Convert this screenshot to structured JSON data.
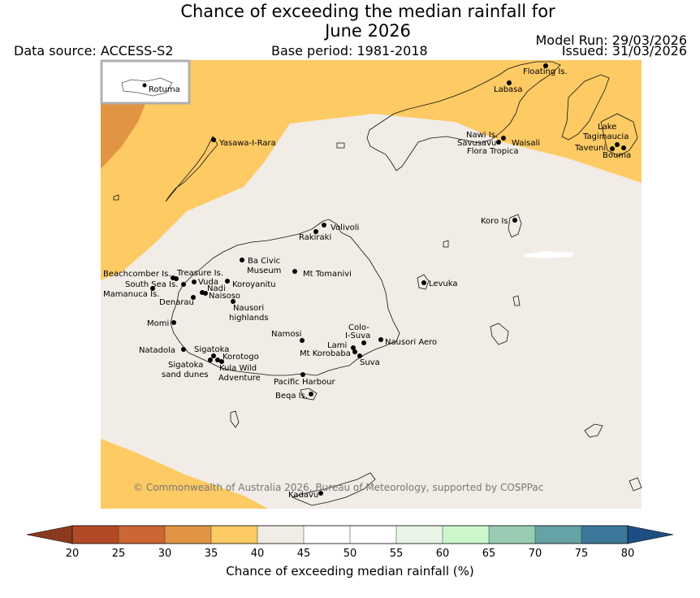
{
  "header": {
    "title_line1": "Chance of exceeding the median rainfall for",
    "title_line2": "June 2026",
    "data_source": "Data source: ACCESS-S2",
    "base_period": "Base period: 1981-2018",
    "model_run": "Model Run: 29/03/2026",
    "issued": "Issued: 31/03/2026"
  },
  "inset": {
    "label": "Rotuma"
  },
  "copyright": "© Commonwealth of Australia 2026, Bureau of Meteorology, supported by COSPPac",
  "places": [
    {
      "name": "Floating Is."
    },
    {
      "name": "Labasa"
    },
    {
      "name": "Yasawa-I-Rara"
    },
    {
      "name": "Nawi Is."
    },
    {
      "name": "Savusavu"
    },
    {
      "name": "Waisali"
    },
    {
      "name": "Flora Tropica"
    },
    {
      "name": "Lake"
    },
    {
      "name": "Tagimaucia"
    },
    {
      "name": "Taveuni"
    },
    {
      "name": "Bouma"
    },
    {
      "name": "Koro Is."
    },
    {
      "name": "Volivoli"
    },
    {
      "name": "Rakiraki"
    },
    {
      "name": "Ba Civic"
    },
    {
      "name": "Museum"
    },
    {
      "name": "Mt Tomanivi"
    },
    {
      "name": "Beachcomber Is."
    },
    {
      "name": "Treasure Is."
    },
    {
      "name": "South Sea Is."
    },
    {
      "name": "Vuda"
    },
    {
      "name": "Nadi"
    },
    {
      "name": "Koroyanitu"
    },
    {
      "name": "Mamanuca Is."
    },
    {
      "name": "Naisoso"
    },
    {
      "name": "Denarau"
    },
    {
      "name": "Nausori"
    },
    {
      "name": "highlands"
    },
    {
      "name": "Levuka"
    },
    {
      "name": "Momi"
    },
    {
      "name": "Namosi"
    },
    {
      "name": "Colo-"
    },
    {
      "name": "I-Suva"
    },
    {
      "name": "Lami"
    },
    {
      "name": "Nausori Aero"
    },
    {
      "name": "Natadola"
    },
    {
      "name": "Sigatoka"
    },
    {
      "name": "Mt Korobaba"
    },
    {
      "name": "Korotogo"
    },
    {
      "name": "Suva"
    },
    {
      "name": "Sigatoka"
    },
    {
      "name": "Kula Wild"
    },
    {
      "name": "sand dunes"
    },
    {
      "name": "Adventure"
    },
    {
      "name": "Pacific Harbour"
    },
    {
      "name": "Beqa Is."
    },
    {
      "name": "Kadavu"
    }
  ],
  "colorbar": {
    "title": "Chance of exceeding median rainfall (%)",
    "ticks": [
      "20",
      "25",
      "30",
      "35",
      "40",
      "45",
      "50",
      "55",
      "60",
      "65",
      "70",
      "75",
      "80"
    ],
    "low_extend_color": "#8c3a1d",
    "high_extend_color": "#1d4e82",
    "bins": [
      {
        "range": "20-25",
        "color": "#b34a25"
      },
      {
        "range": "25-30",
        "color": "#cc6633"
      },
      {
        "range": "30-35",
        "color": "#e19544"
      },
      {
        "range": "35-40",
        "color": "#fdca64"
      },
      {
        "range": "40-45",
        "color": "#f1ece5"
      },
      {
        "range": "45-50",
        "color": "#ffffff"
      },
      {
        "range": "50-55",
        "color": "#ffffff"
      },
      {
        "range": "55-60",
        "color": "#e8f5e6"
      },
      {
        "range": "60-65",
        "color": "#ccf7cc"
      },
      {
        "range": "65-70",
        "color": "#99cdb3"
      },
      {
        "range": "70-75",
        "color": "#66a3a6"
      },
      {
        "range": "75-80",
        "color": "#3d7799"
      }
    ]
  },
  "colors": {
    "yellow": "#fdca64",
    "orange": "#e19544",
    "neutral": "#f1ece5"
  }
}
